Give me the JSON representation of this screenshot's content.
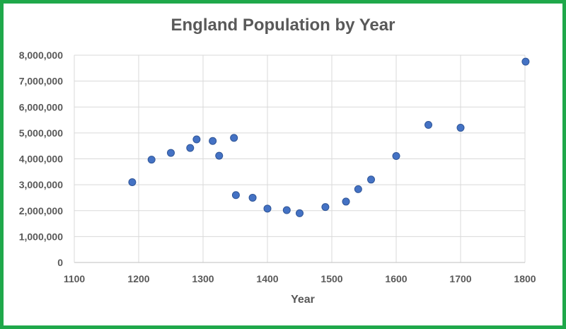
{
  "colors": {
    "border": "#1fa84a",
    "point": "#4472c4",
    "point_stroke": "#2f5597",
    "grid": "#d9d9d9",
    "text": "#595959"
  },
  "chart_data": {
    "type": "scatter",
    "title": "England Population by Year",
    "xlabel": "Year",
    "ylabel": "",
    "xlim": [
      1100,
      1800
    ],
    "ylim": [
      0,
      8000000
    ],
    "x_ticks": [
      1100,
      1200,
      1300,
      1400,
      1500,
      1600,
      1700,
      1800
    ],
    "y_ticks": [
      0,
      1000000,
      2000000,
      3000000,
      4000000,
      5000000,
      6000000,
      7000000,
      8000000
    ],
    "x_tick_labels": [
      "1100",
      "1200",
      "1300",
      "1400",
      "1500",
      "1600",
      "1700",
      "1800"
    ],
    "y_tick_labels": [
      "0",
      "1,000,000",
      "2,000,000",
      "3,000,000",
      "4,000,000",
      "5,000,000",
      "6,000,000",
      "7,000,000",
      "8,000,000"
    ],
    "grid": true,
    "legend": "none",
    "series": [
      {
        "points": [
          {
            "x": 1190,
            "y": 3100000
          },
          {
            "x": 1220,
            "y": 3970000
          },
          {
            "x": 1250,
            "y": 4230000
          },
          {
            "x": 1280,
            "y": 4420000
          },
          {
            "x": 1290,
            "y": 4750000
          },
          {
            "x": 1315,
            "y": 4690000
          },
          {
            "x": 1325,
            "y": 4120000
          },
          {
            "x": 1348,
            "y": 4810000
          },
          {
            "x": 1351,
            "y": 2600000
          },
          {
            "x": 1377,
            "y": 2500000
          },
          {
            "x": 1400,
            "y": 2080000
          },
          {
            "x": 1430,
            "y": 2020000
          },
          {
            "x": 1450,
            "y": 1900000
          },
          {
            "x": 1490,
            "y": 2140000
          },
          {
            "x": 1522,
            "y": 2350000
          },
          {
            "x": 1541,
            "y": 2830000
          },
          {
            "x": 1561,
            "y": 3200000
          },
          {
            "x": 1600,
            "y": 4110000
          },
          {
            "x": 1650,
            "y": 5310000
          },
          {
            "x": 1700,
            "y": 5200000
          },
          {
            "x": 1801,
            "y": 7750000
          }
        ]
      }
    ]
  }
}
